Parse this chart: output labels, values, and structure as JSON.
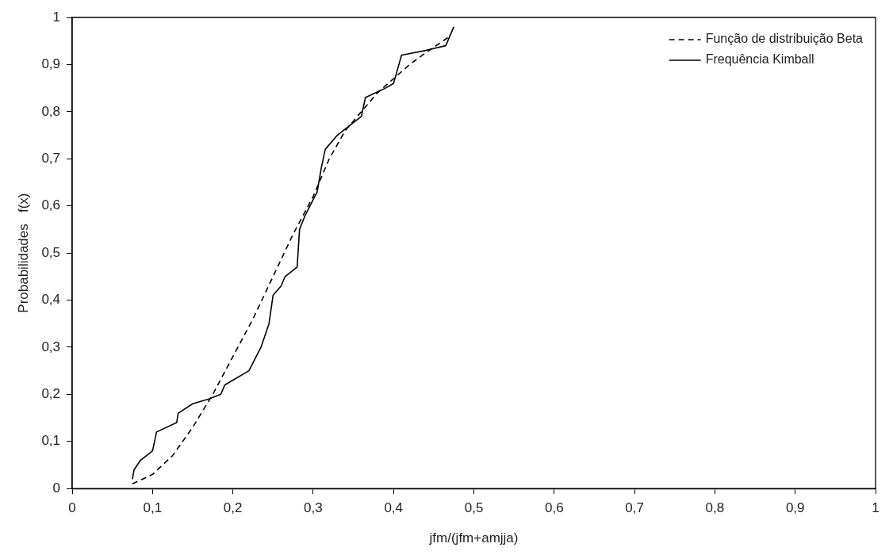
{
  "chart_data": {
    "type": "line",
    "xlabel": "jfm/(jfm+amjja)",
    "ylabel": "Probabilidades   f(x)",
    "xlim": [
      0,
      1
    ],
    "ylim": [
      0,
      1
    ],
    "xticks": [
      0,
      {
        "value": 0.1,
        "label": "0,1"
      },
      {
        "value": 0.2,
        "label": "0,2"
      },
      {
        "value": 0.3,
        "label": "0,3"
      },
      {
        "value": 0.4,
        "label": "0,4"
      },
      {
        "value": 0.5,
        "label": "0,5"
      },
      {
        "value": 0.6,
        "label": "0,6"
      },
      {
        "value": 0.7,
        "label": "0,7"
      },
      {
        "value": 0.8,
        "label": "0,8"
      },
      {
        "value": 0.9,
        "label": "0,9"
      },
      1
    ],
    "yticks": [
      0,
      {
        "value": 0.1,
        "label": "0,1"
      },
      {
        "value": 0.2,
        "label": "0,2"
      },
      {
        "value": 0.3,
        "label": "0,3"
      },
      {
        "value": 0.4,
        "label": "0,4"
      },
      {
        "value": 0.5,
        "label": "0,5"
      },
      {
        "value": 0.6,
        "label": "0,6"
      },
      {
        "value": 0.7,
        "label": "0,7"
      },
      {
        "value": 0.8,
        "label": "0,8"
      },
      {
        "value": 0.9,
        "label": "0,9"
      },
      1
    ],
    "grid": false,
    "legend": "top right",
    "marker": "none",
    "series": [
      {
        "name": "Função de distribuição Beta",
        "color": "#000000",
        "line_style": "dashed",
        "x": [
          0.075,
          0.1,
          0.125,
          0.15,
          0.175,
          0.2,
          0.225,
          0.25,
          0.275,
          0.3,
          0.32,
          0.34,
          0.36,
          0.38,
          0.4,
          0.42,
          0.44,
          0.47
        ],
        "values": [
          0.01,
          0.03,
          0.07,
          0.13,
          0.2,
          0.28,
          0.36,
          0.45,
          0.54,
          0.62,
          0.7,
          0.76,
          0.8,
          0.84,
          0.87,
          0.9,
          0.925,
          0.96
        ]
      },
      {
        "name": "Frequência Kimball",
        "color": "#000000",
        "line_style": "solid",
        "x": [
          0.075,
          0.077,
          0.085,
          0.1,
          0.105,
          0.13,
          0.132,
          0.15,
          0.17,
          0.185,
          0.19,
          0.22,
          0.235,
          0.245,
          0.25,
          0.26,
          0.265,
          0.28,
          0.283,
          0.29,
          0.305,
          0.31,
          0.315,
          0.33,
          0.345,
          0.36,
          0.365,
          0.39,
          0.4,
          0.405,
          0.41,
          0.44,
          0.465,
          0.475
        ],
        "values": [
          0.02,
          0.04,
          0.06,
          0.08,
          0.12,
          0.14,
          0.16,
          0.18,
          0.19,
          0.2,
          0.22,
          0.25,
          0.3,
          0.35,
          0.41,
          0.43,
          0.45,
          0.47,
          0.55,
          0.58,
          0.63,
          0.68,
          0.72,
          0.75,
          0.77,
          0.79,
          0.83,
          0.85,
          0.86,
          0.89,
          0.92,
          0.93,
          0.94,
          0.98
        ]
      }
    ]
  }
}
